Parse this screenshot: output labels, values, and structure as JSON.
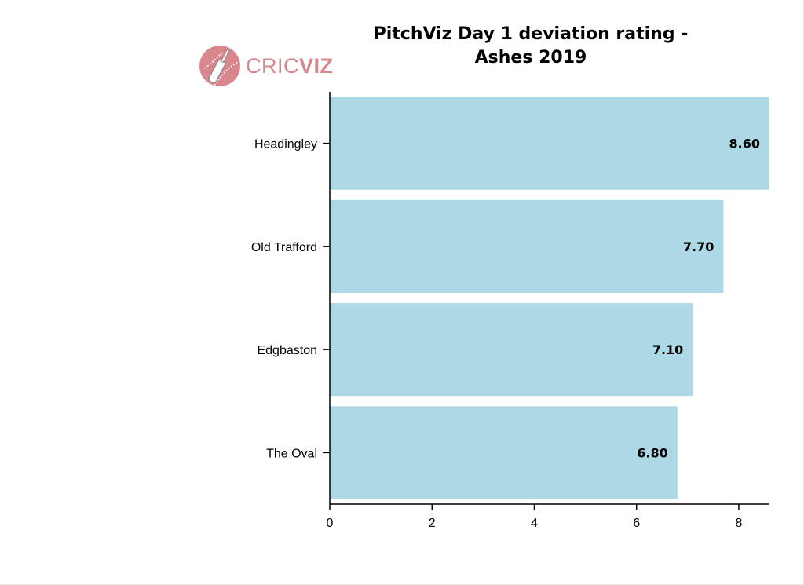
{
  "logo": {
    "text_a": "CRIC",
    "text_b": "VIZ"
  },
  "colors": {
    "bar": "#add8e6",
    "axis": "#000000",
    "logo": "#d9868d"
  },
  "chart_data": {
    "type": "bar",
    "orientation": "horizontal",
    "title_lines": [
      "PitchViz Day 1 deviation rating -",
      "Ashes 2019"
    ],
    "categories": [
      "Headingley",
      "Old Trafford",
      "Edgbaston",
      "The Oval"
    ],
    "values": [
      8.6,
      7.7,
      7.1,
      6.8
    ],
    "value_labels": [
      "8.60",
      "7.70",
      "7.10",
      "6.80"
    ],
    "xlim": [
      0,
      8.6
    ],
    "xticks": [
      0,
      2,
      4,
      6,
      8
    ],
    "xlabel": "",
    "ylabel": "",
    "grid": false
  }
}
